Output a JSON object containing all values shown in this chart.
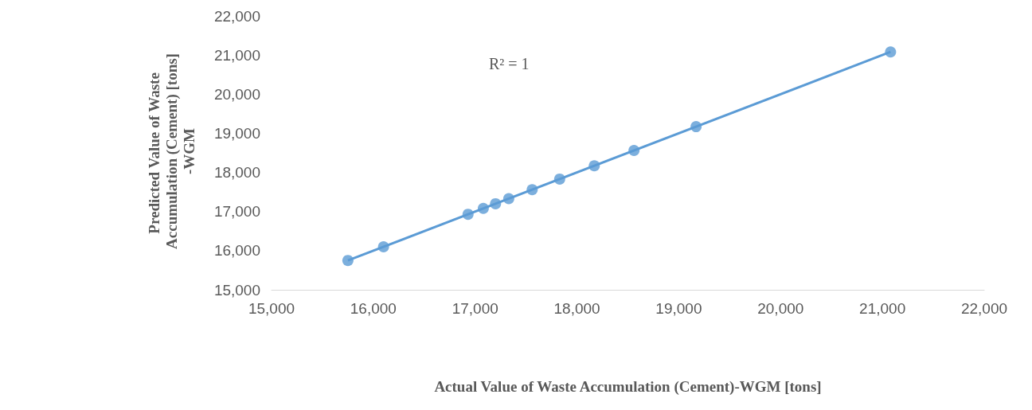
{
  "chart_data": {
    "type": "scatter",
    "xlabel": "Actual Value of Waste Accumulation (Cement)-WGM [tons]",
    "ylabel": "Predicted Value of Waste Accumulation (Cement) [tons]-WGM",
    "annotations": [
      "R² = 1"
    ],
    "grid": false,
    "series": [
      {
        "marker": "circle",
        "color": "#5b9bd5",
        "x": [
          15750,
          16100,
          16930,
          17080,
          17200,
          17330,
          17560,
          17830,
          18170,
          18560,
          19170,
          21080
        ],
        "values": [
          15750,
          16100,
          16930,
          17080,
          17200,
          17330,
          17560,
          17830,
          18170,
          18560,
          19170,
          21080
        ]
      },
      {
        "type": "line",
        "color": "#5b9bd5",
        "x": [
          15750,
          21080
        ],
        "values": [
          15750,
          21080
        ]
      }
    ],
    "xlim": [
      15000,
      22000
    ],
    "xticks": [
      {
        "value": 15000,
        "label": "15,000"
      },
      {
        "value": 16000,
        "label": "16,000"
      },
      {
        "value": 17000,
        "label": "17,000"
      },
      {
        "value": 18000,
        "label": "18,000"
      },
      {
        "value": 19000,
        "label": "19,000"
      },
      {
        "value": 20000,
        "label": "20,000"
      },
      {
        "value": 21000,
        "label": "21,000"
      },
      {
        "value": 22000,
        "label": "22,000"
      }
    ],
    "ylim": [
      15000,
      22000
    ],
    "yticks": [
      {
        "value": 15000,
        "label": "15,000"
      },
      {
        "value": 16000,
        "label": "16,000"
      },
      {
        "value": 17000,
        "label": "17,000"
      },
      {
        "value": 18000,
        "label": "18,000"
      },
      {
        "value": 19000,
        "label": "19,000"
      },
      {
        "value": 20000,
        "label": "20,000"
      },
      {
        "value": 21000,
        "label": "21,000"
      },
      {
        "value": 22000,
        "label": "22,000"
      }
    ]
  }
}
